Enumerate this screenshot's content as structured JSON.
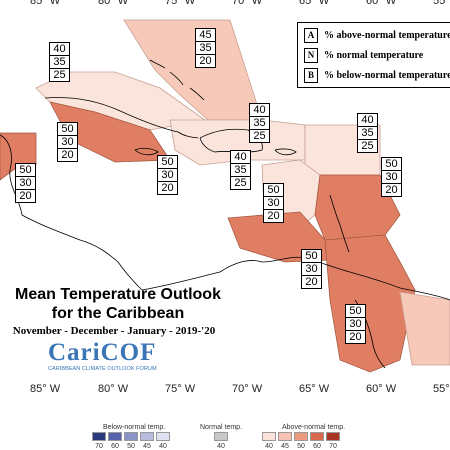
{
  "longitudes": [
    "85° W",
    "80° W",
    "75° W",
    "70° W",
    "65° W",
    "60° W",
    "55° W"
  ],
  "key": {
    "above_letter": "A",
    "above_text": "% above-normal temperature",
    "normal_letter": "N",
    "normal_text": "% normal temperature",
    "below_letter": "B",
    "below_text": "% below-normal temperature"
  },
  "title": {
    "line1": "Mean Temperature Outlook",
    "line2": "for the Caribbean",
    "line3": "November - December - January - 2019-'20"
  },
  "logo": {
    "word_big": "CariCOF",
    "subtitle": "CARIBBEAN CLIMATE OUTLOOK FORUM"
  },
  "forecast_regions": [
    {
      "name": "bahamas",
      "values": [
        "45",
        "35",
        "20"
      ]
    },
    {
      "name": "cuba",
      "values": [
        "40",
        "35",
        "25"
      ]
    },
    {
      "name": "belize",
      "values": [
        "50",
        "30",
        "20"
      ]
    },
    {
      "name": "belize-south",
      "values": [
        "50",
        "30",
        "20"
      ]
    },
    {
      "name": "jamaica",
      "values": [
        "50",
        "30",
        "20"
      ]
    },
    {
      "name": "hispaniola",
      "values": [
        "40",
        "35",
        "25"
      ]
    },
    {
      "name": "southern-hispaniola",
      "values": [
        "40",
        "35",
        "25"
      ]
    },
    {
      "name": "puerto-rico",
      "values": [
        "50",
        "30",
        "20"
      ]
    },
    {
      "name": "northern-leewards",
      "values": [
        "40",
        "35",
        "25"
      ]
    },
    {
      "name": "leeward-islands",
      "values": [
        "50",
        "30",
        "20"
      ]
    },
    {
      "name": "abc-islands",
      "values": [
        "50",
        "30",
        "20"
      ]
    },
    {
      "name": "guianas",
      "values": [
        "50",
        "30",
        "20"
      ]
    }
  ],
  "legend": {
    "below_title": "Below-normal temp.",
    "normal_title": "Normal temp.",
    "above_title": "Above-normal temp.",
    "below_ticks": [
      "70",
      "60",
      "50",
      "45",
      "40"
    ],
    "normal_ticks": [
      "40"
    ],
    "above_ticks": [
      "40",
      "45",
      "50",
      "60",
      "70"
    ],
    "below_colors": [
      "#2b3a7e",
      "#5561a8",
      "#8b92c6",
      "#b8bde0",
      "#dfe2f2"
    ],
    "normal_color": "#c8c8c8",
    "above_colors": [
      "#fbe3dc",
      "#f6c2b1",
      "#ec9a80",
      "#d9694e",
      "#a93424"
    ]
  },
  "colors": {
    "above_45": "#f6c9b9",
    "above_40": "#fbe4dc",
    "above_50": "#e07e63",
    "land_outline": "#000000"
  }
}
